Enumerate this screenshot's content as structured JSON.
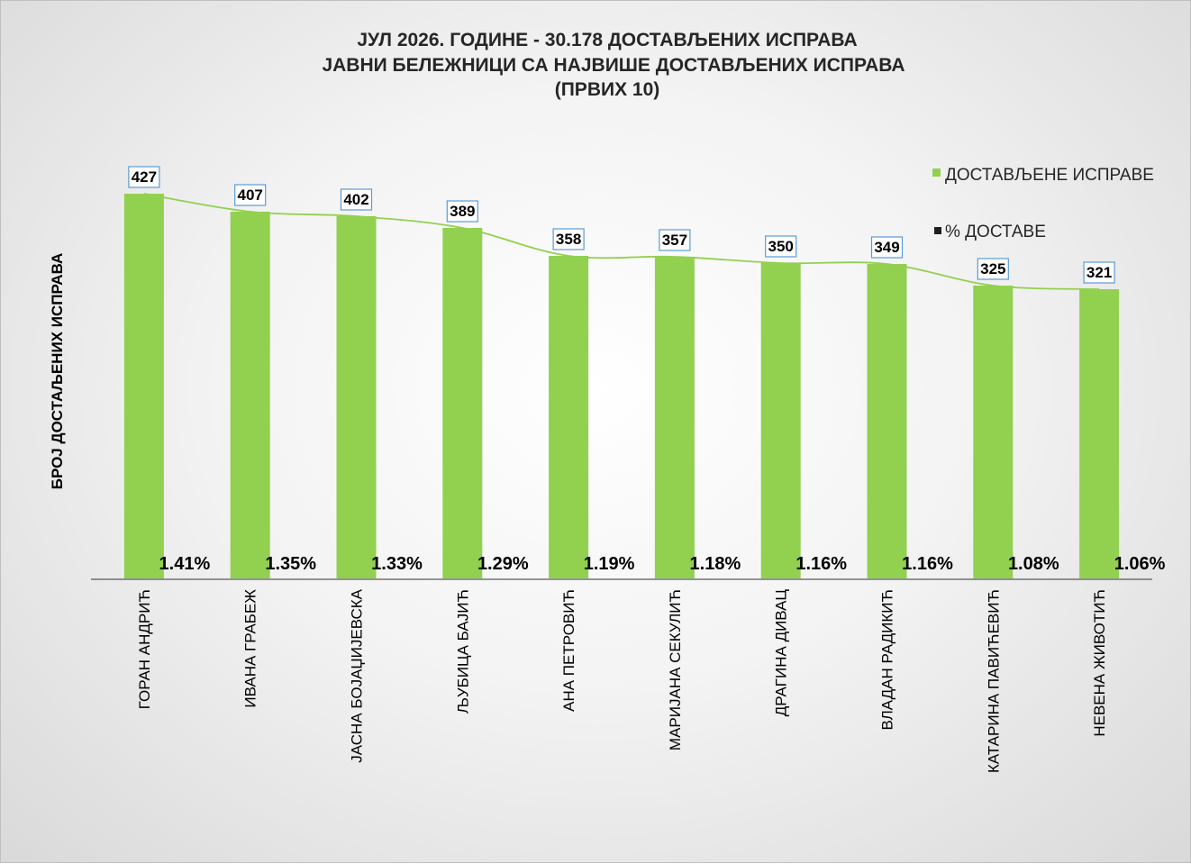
{
  "chart_data": {
    "type": "bar",
    "title_lines": [
      "ЈУЛ 2026. ГОДИНЕ - 30.178  ДОСТАВЉЕНИХ ИСПРАВА",
      "ЈАВНИ БЕЛЕЖНИЦИ СА НАЈВИШЕ ДОСТАВЉЕНИХ ИСПРАВА",
      "(ПРВИХ 10)"
    ],
    "ylabel": "БРОЈ ДОСТАЉЕНИХ ИСПРАВА",
    "xlabel": "",
    "ylim": [
      0,
      480
    ],
    "categories": [
      "ГОРАН АНДРИЋ",
      "ИВАНА ГРАБЕЖ",
      "ЈАСНА БОЈАЏИЈЕВСКА",
      "ЉУБИЦА БАЈИЋ",
      "АНА ПЕТРОВИЋ",
      "МАРИЈАНА СЕКУЛИЋ",
      "ДРАГИНА ДИВАЦ",
      "ВЛАДАН РАДИКИЋ",
      "КАТАРИНА ПАВИЋЕВИЋ",
      "НЕВЕНА ЖИВОТИЋ"
    ],
    "series": [
      {
        "name": "ДОСТАВЉЕНЕ ИСПРАВЕ",
        "kind": "bar",
        "color": "#92d050",
        "values": [
          427,
          407,
          402,
          389,
          358,
          357,
          350,
          349,
          325,
          321
        ],
        "labels": [
          "427",
          "407",
          "402",
          "389",
          "358",
          "357",
          "350",
          "349",
          "325",
          "321"
        ]
      },
      {
        "name": "% ДОСТАВЕ",
        "kind": "percent",
        "color": "#1f1f1f",
        "values": [
          1.41,
          1.35,
          1.33,
          1.29,
          1.19,
          1.18,
          1.16,
          1.16,
          1.08,
          1.06
        ],
        "labels": [
          "1.41%",
          "1.35%",
          "1.33%",
          "1.29%",
          "1.19%",
          "1.18%",
          "1.16%",
          "1.16%",
          "1.08%",
          "1.06%"
        ]
      }
    ],
    "trendline_color": "#92d050",
    "label_box_color": "#5b9bd5",
    "legend_position": "top-right",
    "grid": false
  }
}
